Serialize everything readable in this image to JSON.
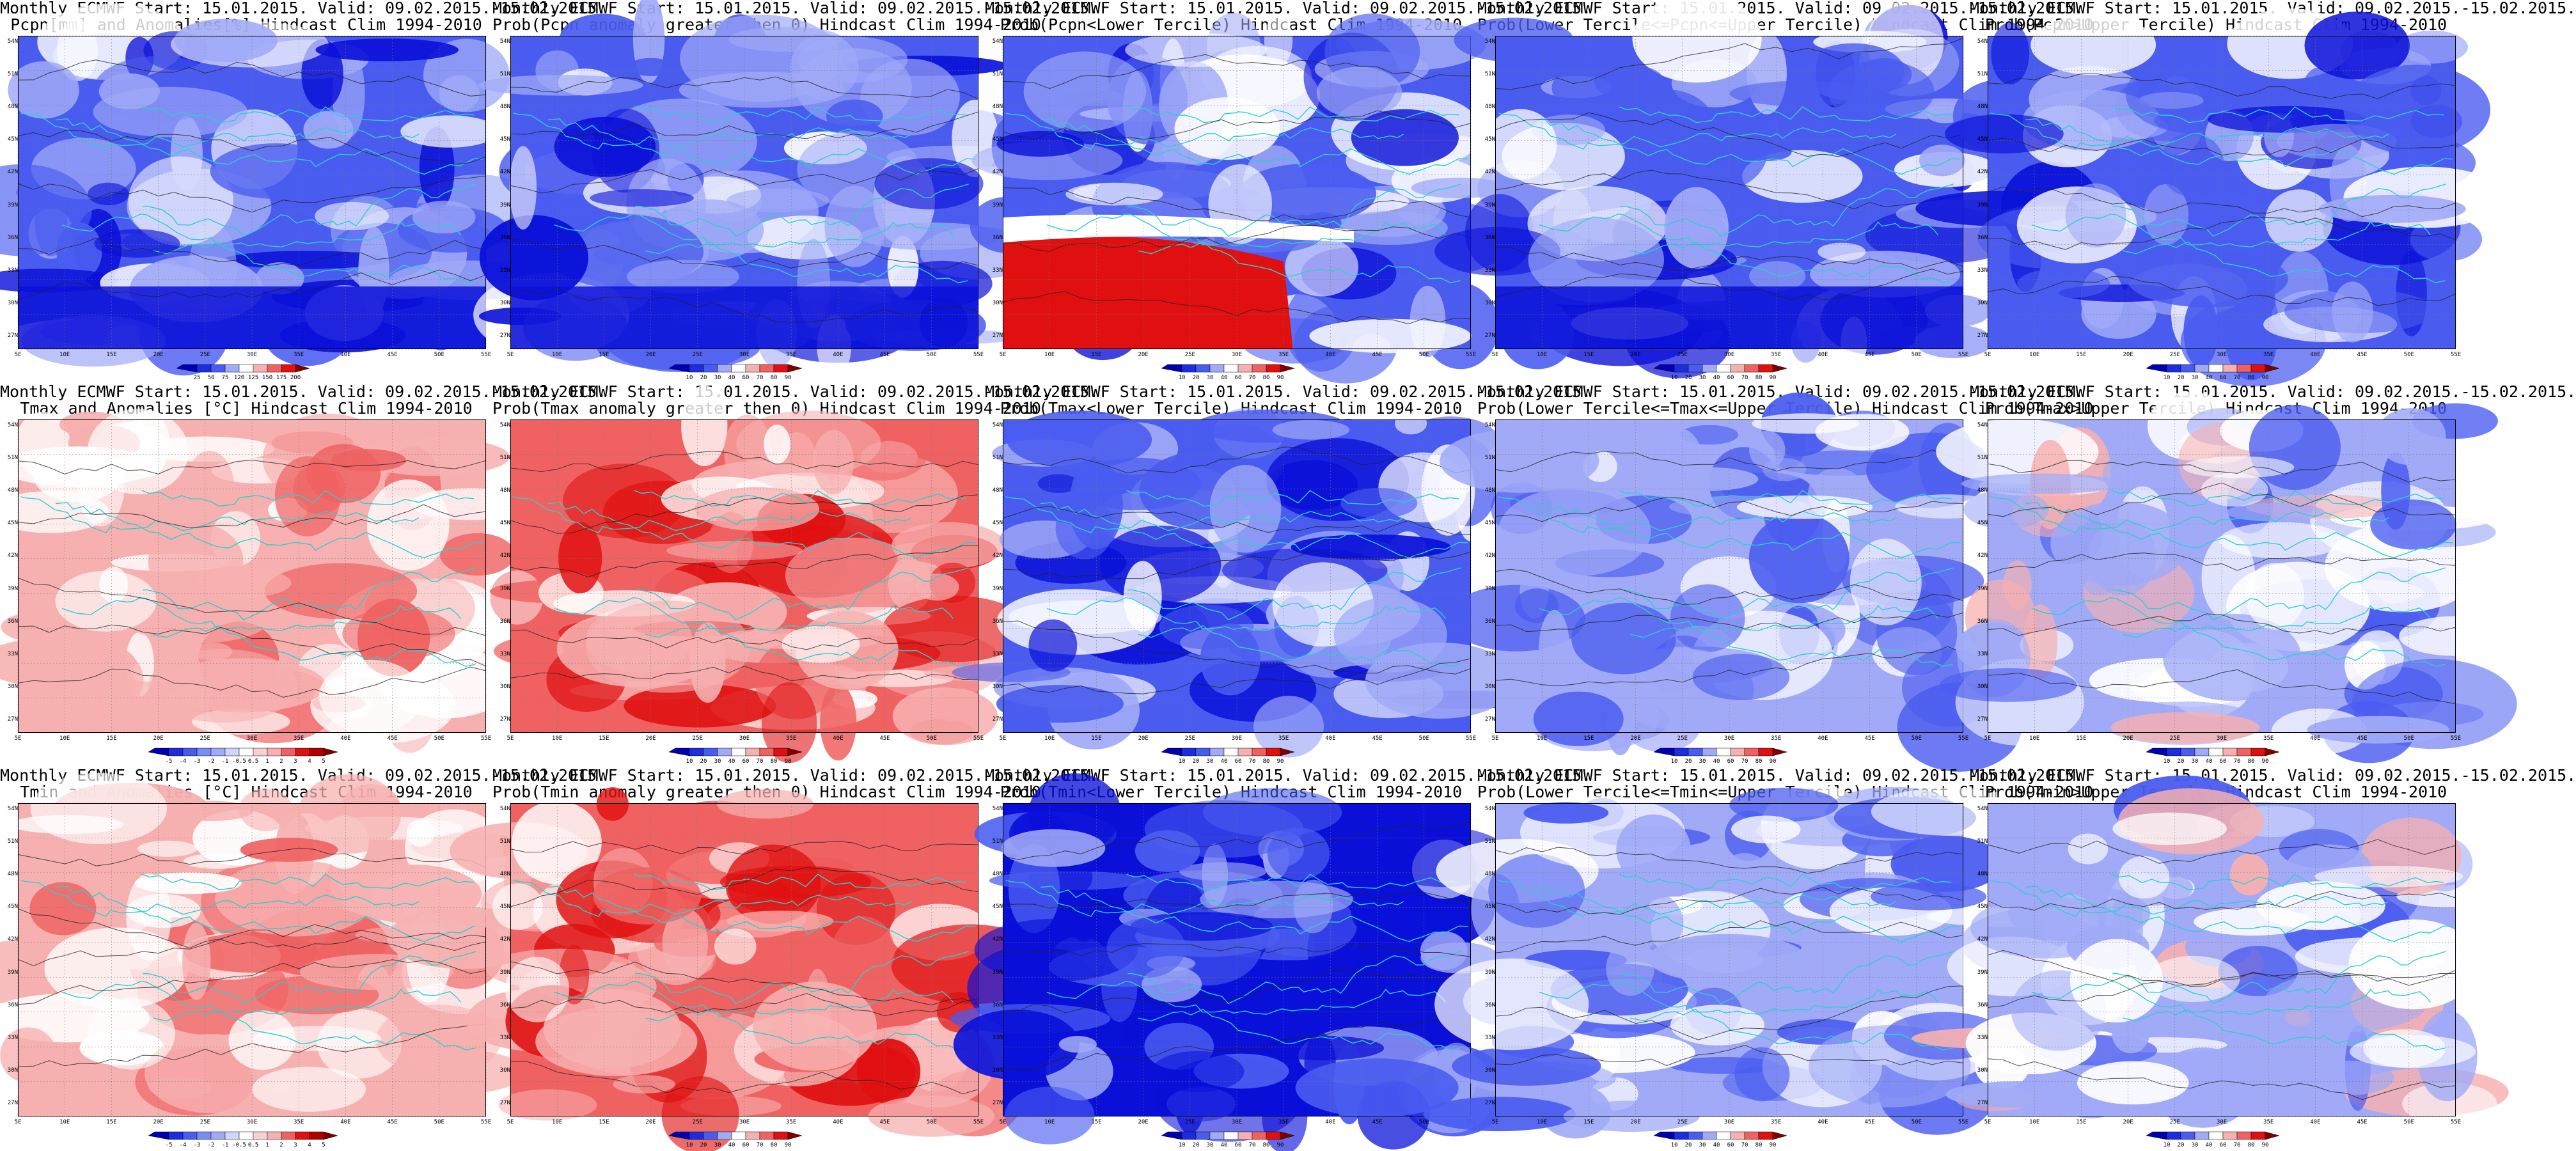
{
  "common": {
    "lat_ticks": [
      "54N",
      "51N",
      "48N",
      "45N",
      "42N",
      "39N",
      "36N",
      "33N",
      "30N",
      "27N"
    ],
    "lon_ticks": [
      "5E",
      "10E",
      "15E",
      "20E",
      "25E",
      "30E",
      "35E",
      "40E",
      "45E",
      "50E",
      "55E"
    ]
  },
  "colorbars": {
    "pcpn_anom": [
      "25",
      "50",
      "75",
      "120",
      "125",
      "150",
      "175",
      "200"
    ],
    "temp_anom": [
      "-5",
      "-4",
      "-3",
      "-2",
      "-1",
      "-0.5",
      "0.5",
      "1",
      "2",
      "3",
      "4",
      "5"
    ],
    "prob": [
      "10",
      "20",
      "30",
      "40",
      "60",
      "70",
      "80",
      "90"
    ]
  },
  "colors": {
    "blue_strong": "#0a10d8",
    "blue_mid": "#4a5cf0",
    "blue_light": "#a0aaf7",
    "red_strong": "#e01010",
    "red_mid": "#f06262",
    "red_light": "#f7b0b0",
    "coast": "#2ad0d0",
    "contour": "#222222"
  },
  "panels": [
    {
      "title_line1": "Monthly ECMWF Start: 15.01.2015. Valid: 09.02.2015.-15.02.2015.",
      "title_line2": "Pcpn[mm] and Anomalies[%] Hindcast Clim 1994-2010",
      "field": "pcpn_anomaly",
      "colorbar": "pcpn_anom",
      "dominant": "blue"
    },
    {
      "title_line1": "Monthly ECMWF Start: 15.01.2015. Valid: 09.02.2015.-15.02.2015.",
      "title_line2": "Prob(Pcpn anomaly greater then 0) Hindcast Clim 1994-2010",
      "field": "prob",
      "colorbar": "prob",
      "dominant": "blue"
    },
    {
      "title_line1": "Monthly ECMWF Start: 15.01.2015. Valid: 09.02.2015.-15.02.2015.",
      "title_line2": "Prob(Pcpn<Lower Tercile) Hindcast Clim 1994-2010",
      "field": "prob",
      "colorbar": "prob",
      "dominant": "blue_red_south"
    },
    {
      "title_line1": "Monthly ECMWF Start: 15.01.2015. Valid: 09.02.2015.-15.02.2015.",
      "title_line2": "Prob(Lower Tercile<=Pcpn<=Upper Tercile) Hindcast Clim 1994-2010",
      "field": "prob",
      "colorbar": "prob",
      "dominant": "blue"
    },
    {
      "title_line1": "Monthly ECMWF Start: 15.01.2015. Valid: 09.02.2015.-15.02.2015.",
      "title_line2": "Prob(Pcpn>Upper Tercile) Hindcast Clim 1994-2010",
      "field": "prob",
      "colorbar": "prob",
      "dominant": "blue"
    },
    {
      "title_line1": "Monthly ECMWF Start: 15.01.2015. Valid: 09.02.2015.-15.02.2015.",
      "title_line2": "Tmax and Anomalies [°C] Hindcast Clim 1994-2010",
      "field": "temp_anomaly",
      "colorbar": "temp_anom",
      "dominant": "red_light"
    },
    {
      "title_line1": "Monthly ECMWF Start: 15.01.2015. Valid: 09.02.2015.-15.02.2015.",
      "title_line2": "Prob(Tmax anomaly greater then 0) Hindcast Clim 1994-2010",
      "field": "prob",
      "colorbar": "prob",
      "dominant": "red"
    },
    {
      "title_line1": "Monthly ECMWF Start: 15.01.2015. Valid: 09.02.2015.-15.02.2015.",
      "title_line2": "Prob(Tmax<Lower Tercile) Hindcast Clim 1994-2010",
      "field": "prob",
      "colorbar": "prob",
      "dominant": "blue"
    },
    {
      "title_line1": "Monthly ECMWF Start: 15.01.2015. Valid: 09.02.2015.-15.02.2015.",
      "title_line2": "Prob(Lower Tercile<=Tmax<=Upper Tercile) Hindcast Clim 1994-2010",
      "field": "prob",
      "colorbar": "prob",
      "dominant": "blue_light"
    },
    {
      "title_line1": "Monthly ECMWF Start: 15.01.2015. Valid: 09.02.2015.-15.02.2015.",
      "title_line2": "Prob(Tmax>Upper Tercile) Hindcast Clim 1994-2010",
      "field": "prob",
      "colorbar": "prob",
      "dominant": "mixed"
    },
    {
      "title_line1": "Monthly ECMWF Start: 15.01.2015. Valid: 09.02.2015.-15.02.2015.",
      "title_line2": "Tmin and Anomalies [°C] Hindcast Clim 1994-2010",
      "field": "temp_anomaly",
      "colorbar": "temp_anom",
      "dominant": "red_light"
    },
    {
      "title_line1": "Monthly ECMWF Start: 15.01.2015. Valid: 09.02.2015.-15.02.2015.",
      "title_line2": "Prob(Tmin anomaly greater then 0) Hindcast Clim 1994-2010",
      "field": "prob",
      "colorbar": "prob",
      "dominant": "red"
    },
    {
      "title_line1": "Monthly ECMWF Start: 15.01.2015. Valid: 09.02.2015.-15.02.2015.",
      "title_line2": "Prob(Tmin<Lower Tercile) Hindcast Clim 1994-2010",
      "field": "prob",
      "colorbar": "prob",
      "dominant": "blue_strong"
    },
    {
      "title_line1": "Monthly ECMWF Start: 15.01.2015. Valid: 09.02.2015.-15.02.2015.",
      "title_line2": "Prob(Lower Tercile<=Tmin<=Upper Tercile) Hindcast Clim 1994-2010",
      "field": "prob",
      "colorbar": "prob",
      "dominant": "blue_light"
    },
    {
      "title_line1": "Monthly ECMWF Start: 15.01.2015. Valid: 09.02.2015.-15.02.2015.",
      "title_line2": "Prob(Tmin>Upper Tercile) Hindcast Clim 1994-2010",
      "field": "prob",
      "colorbar": "prob",
      "dominant": "mixed"
    }
  ],
  "chart_data": {
    "type": "heatmap",
    "x_axis": {
      "ticks": [
        "5E",
        "10E",
        "15E",
        "20E",
        "25E",
        "30E",
        "35E",
        "40E",
        "45E",
        "50E",
        "55E"
      ],
      "range": [
        5,
        55
      ]
    },
    "y_axis": {
      "ticks": [
        "27N",
        "30N",
        "33N",
        "36N",
        "39N",
        "42N",
        "45N",
        "48N",
        "51N",
        "54N"
      ],
      "range": [
        25,
        55
      ]
    },
    "grid": true
  }
}
